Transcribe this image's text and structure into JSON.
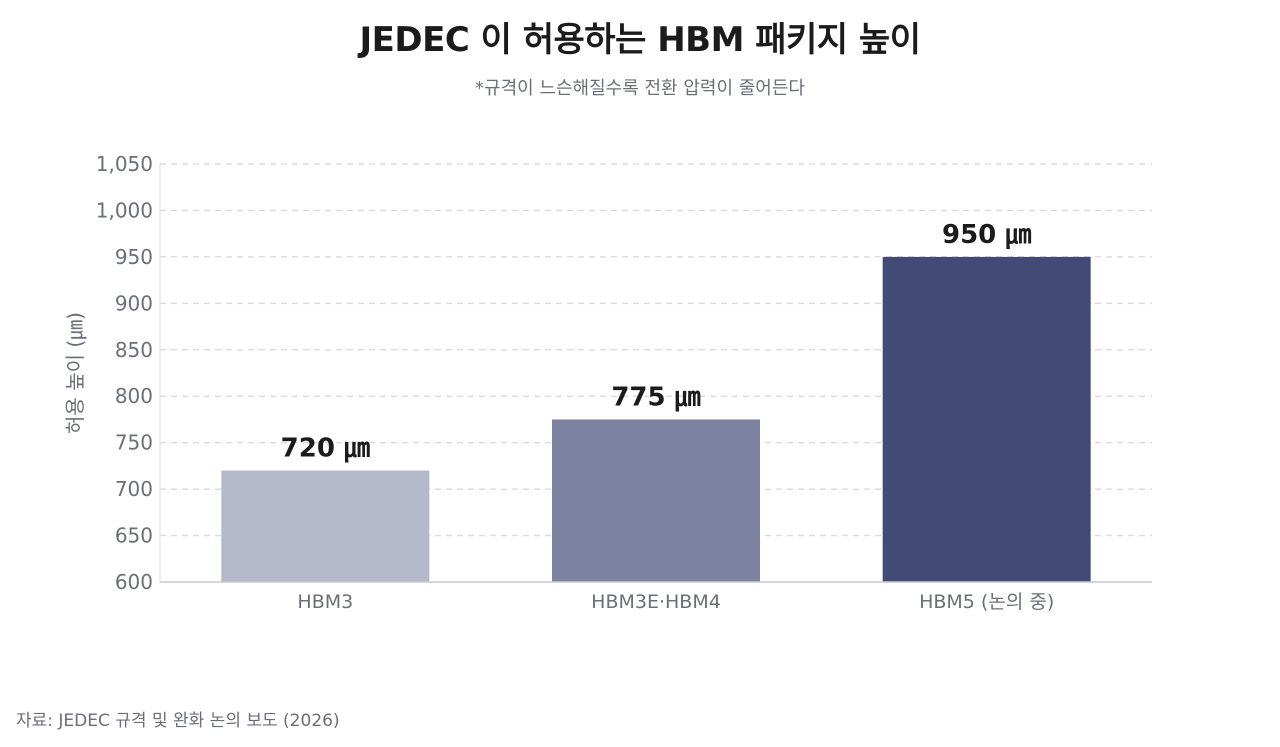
{
  "title": "JEDEC 이 허용하는 HBM 패키지 높이",
  "subtitle": "*규격이 느슨해질수록 전환 압력이 줄어든다",
  "source": "자료: JEDEC 규격 및 완화 논의 보도 (2026)",
  "colors": {
    "bar_light": "#b4b8cb",
    "bar_mid": "#7c829f",
    "bar_dark": "#414b76",
    "grid": "#dcdde2",
    "axis_text": "#6b6f78",
    "label_text": "#1b1b1b"
  },
  "chart_data": {
    "type": "bar",
    "categories": [
      "HBM3",
      "HBM3E·HBM4",
      "HBM5 (논의 중)"
    ],
    "values": [
      720,
      775,
      950
    ],
    "data_labels": [
      "720 ㎛",
      "775 ㎛",
      "950 ㎛"
    ],
    "xlabel": "",
    "ylabel": "허용 높이 (㎛)",
    "ylim": [
      600,
      1050
    ],
    "yticks": [
      600,
      650,
      700,
      750,
      800,
      850,
      900,
      950,
      1000,
      1050
    ],
    "ytick_labels": [
      "600",
      "650",
      "700",
      "750",
      "800",
      "850",
      "900",
      "950",
      "1,000",
      "1,050"
    ],
    "grid": true,
    "legend": "none"
  }
}
